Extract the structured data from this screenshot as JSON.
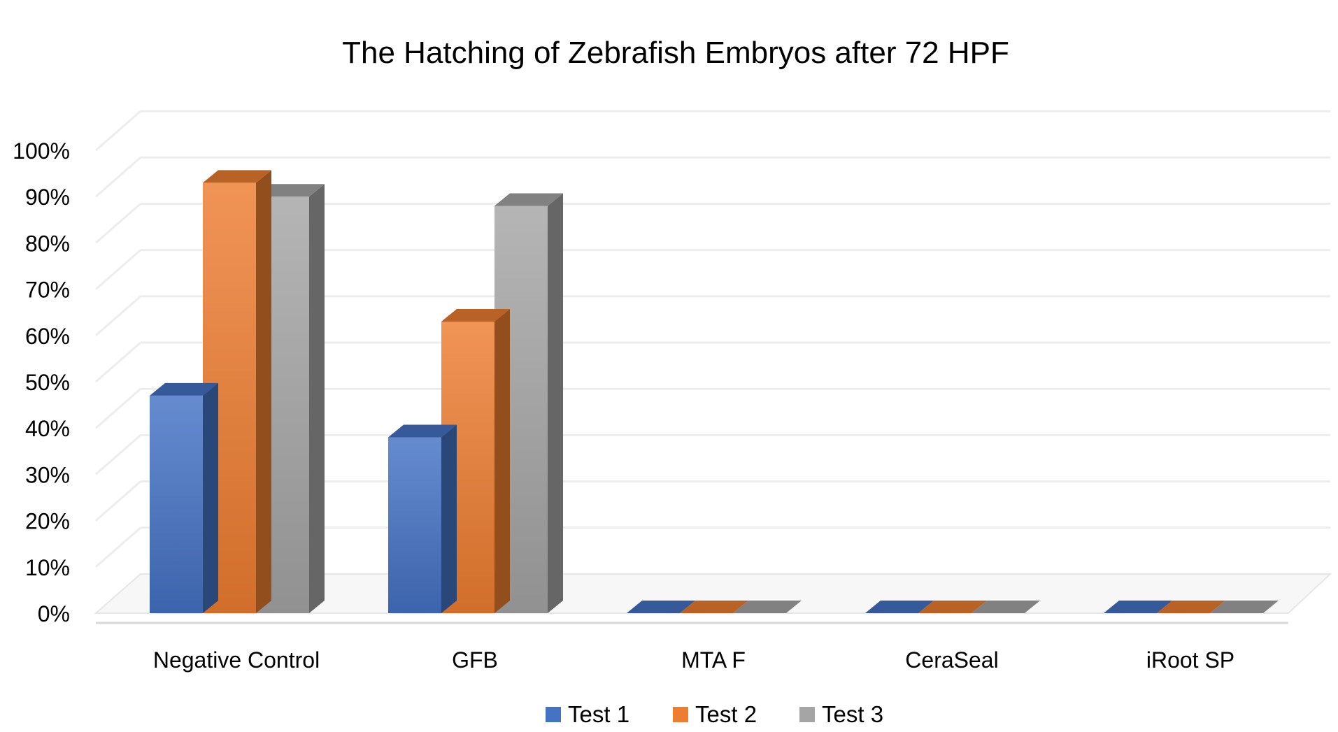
{
  "chart_data": {
    "type": "bar",
    "title": "The Hatching of Zebrafish Embryos after 72 HPF",
    "categories": [
      "Negative Control",
      "GFB",
      "MTA F",
      "CeraSeal",
      "iRoot SP"
    ],
    "series": [
      {
        "name": "Test 1",
        "values": [
          47,
          38,
          0,
          0,
          0
        ],
        "color": "#4472C4"
      },
      {
        "name": "Test 2",
        "values": [
          93,
          63,
          0,
          0,
          0
        ],
        "color": "#ED7D31"
      },
      {
        "name": "Test 3",
        "values": [
          90,
          88,
          0,
          0,
          0
        ],
        "color": "#A5A5A5"
      }
    ],
    "ytick_labels": [
      "0%",
      "10%",
      "20%",
      "30%",
      "40%",
      "50%",
      "60%",
      "70%",
      "80%",
      "90%",
      "100%"
    ],
    "ylim": [
      0,
      100
    ],
    "xlabel": "",
    "ylabel": "",
    "grid": true,
    "legend_position": "bottom",
    "style": "3d-clustered-column"
  }
}
